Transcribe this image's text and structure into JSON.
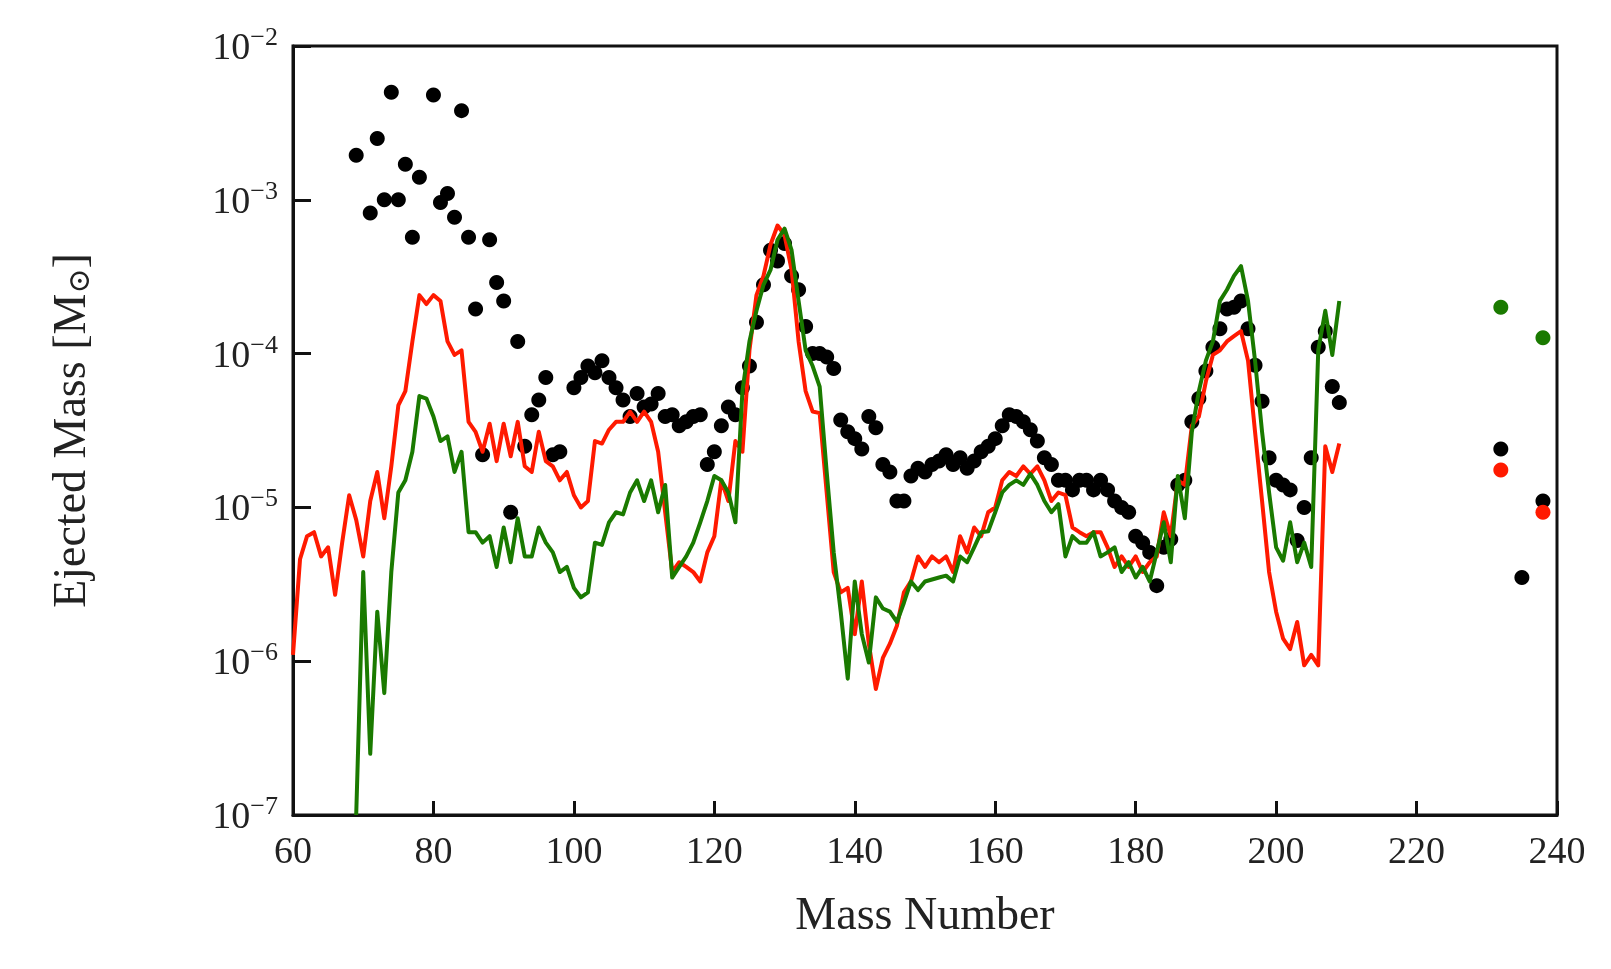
{
  "chart_data": {
    "type": "line",
    "xlabel": "Mass Number",
    "ylabel": "Ejected Mass [M$_{⊙}$]",
    "log": "y",
    "grid": false,
    "xlim": [
      60,
      240
    ],
    "xticks": [
      60,
      80,
      100,
      120,
      140,
      160,
      180,
      200,
      220,
      240
    ],
    "ylim": [
      1e-07,
      0.01
    ],
    "yticks": [
      {
        "value": 1e-07,
        "label": "10$^{−7}$"
      },
      {
        "value": 1e-06,
        "label": "10$^{−6}$"
      },
      {
        "value": 1e-05,
        "label": "10$^{−5}$"
      },
      {
        "value": 0.0001,
        "label": "10$^{−4}$"
      },
      {
        "value": 0.001,
        "label": "10$^{−3}$"
      },
      {
        "value": 0.01,
        "label": "10$^{−2}$"
      }
    ],
    "series": [
      {
        "marker": "none",
        "color": "#ff1a00",
        "x": [
          60,
          61,
          62,
          63,
          64,
          65,
          66,
          67,
          68,
          69,
          70,
          71,
          72,
          73,
          74,
          75,
          76,
          77,
          78,
          79,
          80,
          81,
          82,
          83,
          84,
          85,
          86,
          87,
          88,
          89,
          90,
          91,
          92,
          93,
          94,
          95,
          96,
          97,
          98,
          99,
          100,
          101,
          102,
          103,
          104,
          105,
          106,
          107,
          108,
          109,
          110,
          111,
          112,
          113,
          114,
          115,
          116,
          117,
          118,
          119,
          120,
          121,
          122,
          123,
          124,
          125,
          126,
          127,
          128,
          129,
          130,
          131,
          132,
          133,
          134,
          135,
          136,
          137,
          138,
          139,
          140,
          141,
          142,
          143,
          144,
          145,
          146,
          147,
          148,
          149,
          150,
          151,
          152,
          153,
          154,
          155,
          156,
          157,
          158,
          159,
          160,
          161,
          162,
          163,
          164,
          165,
          166,
          167,
          168,
          169,
          170,
          171,
          172,
          173,
          174,
          175,
          176,
          177,
          178,
          179,
          180,
          181,
          182,
          183,
          184,
          185,
          186,
          187,
          188,
          189,
          190,
          191,
          192,
          193,
          194,
          195,
          196,
          197,
          198,
          199,
          200,
          201,
          202,
          203,
          204,
          205,
          206,
          207,
          208,
          209
        ],
        "values": [
          1.1e-06,
          4.6e-06,
          6.5e-06,
          6.9e-06,
          4.8e-06,
          5.5e-06,
          2.7e-06,
          5.9e-06,
          1.2e-05,
          8.3e-06,
          4.8e-06,
          1.1e-05,
          1.7e-05,
          8.5e-06,
          1.85e-05,
          4.6e-05,
          5.7e-05,
          0.00012,
          0.00024,
          0.00021,
          0.00024,
          0.00022,
          0.00012,
          9.8e-05,
          0.000105,
          3.6e-05,
          3.1e-05,
          2.3e-05,
          3.5e-05,
          2e-05,
          3.5e-05,
          2.15e-05,
          3.6e-05,
          1.85e-05,
          1.7e-05,
          3.1e-05,
          2e-05,
          1.85e-05,
          1.5e-05,
          1.7e-05,
          1.2e-05,
          1e-05,
          1.1e-05,
          2.7e-05,
          2.6e-05,
          3.2e-05,
          3.6e-05,
          3.6e-05,
          4.2e-05,
          3.6e-05,
          4.2e-05,
          3.6e-05,
          2.3e-05,
          9.3e-06,
          3.8e-06,
          4.4e-06,
          4.1e-06,
          3.8e-06,
          3.3e-06,
          5.1e-06,
          6.5e-06,
          1.5e-05,
          1.1e-05,
          2.7e-05,
          2.3e-05,
          0.000105,
          0.00024,
          0.00032,
          0.00051,
          0.00068,
          0.00059,
          0.00035,
          0.00012,
          5.7e-05,
          4.2e-05,
          4.1e-05,
          1.25e-05,
          3.8e-06,
          2.8e-06,
          3e-06,
          1.5e-06,
          3.3e-06,
          1.3e-06,
          6.6e-07,
          1.05e-06,
          1.3e-06,
          1.7e-06,
          2.8e-06,
          3.3e-06,
          4.8e-06,
          4.1e-06,
          4.8e-06,
          4.4e-06,
          4.8e-06,
          3.8e-06,
          6.5e-06,
          5.1e-06,
          7.4e-06,
          6.5e-06,
          9.3e-06,
          1e-05,
          1.5e-05,
          1.7e-05,
          1.6e-05,
          1.85e-05,
          1.65e-05,
          1.85e-05,
          1.5e-05,
          1.1e-05,
          1.25e-05,
          1.2e-05,
          7.4e-06,
          6.9e-06,
          6.5e-06,
          6.9e-06,
          6.9e-06,
          5.5e-06,
          4.1e-06,
          4.8e-06,
          4.1e-06,
          4.8e-06,
          3.8e-06,
          4.4e-06,
          4.8e-06,
          9.3e-06,
          6.5e-06,
          1.5e-05,
          1.4e-05,
          3.4e-05,
          3.9e-05,
          6.6e-05,
          9.8e-05,
          0.000105,
          0.00012,
          0.00013,
          0.00014,
          9e-05,
          3.1e-05,
          1.1e-05,
          3.8e-06,
          2.1e-06,
          1.4e-06,
          1.2e-06,
          1.8e-06,
          9.4e-07,
          1.1e-06,
          9.4e-07,
          2.5e-05,
          1.7e-05,
          2.6e-05
        ]
      },
      {
        "marker": "none",
        "color": "#1a7a00",
        "x": [
          69,
          70,
          71,
          72,
          73,
          74,
          75,
          76,
          77,
          78,
          79,
          80,
          81,
          82,
          83,
          84,
          85,
          86,
          87,
          88,
          89,
          90,
          91,
          92,
          93,
          94,
          95,
          96,
          97,
          98,
          99,
          100,
          101,
          102,
          103,
          104,
          105,
          106,
          107,
          108,
          109,
          110,
          111,
          112,
          113,
          114,
          115,
          116,
          117,
          118,
          119,
          120,
          121,
          122,
          123,
          124,
          125,
          126,
          127,
          128,
          129,
          130,
          131,
          132,
          133,
          134,
          135,
          136,
          137,
          138,
          139,
          140,
          141,
          142,
          143,
          144,
          145,
          146,
          147,
          148,
          149,
          150,
          151,
          152,
          153,
          154,
          155,
          156,
          157,
          158,
          159,
          160,
          161,
          162,
          163,
          164,
          165,
          166,
          167,
          168,
          169,
          170,
          171,
          172,
          173,
          174,
          175,
          176,
          177,
          178,
          179,
          180,
          181,
          182,
          183,
          184,
          185,
          186,
          187,
          188,
          189,
          190,
          191,
          192,
          193,
          194,
          195,
          196,
          197,
          198,
          199,
          200,
          201,
          202,
          203,
          204,
          205,
          206,
          207,
          208,
          209
        ],
        "values": [
          1e-07,
          3.8e-06,
          2.5e-07,
          2.1e-06,
          6.2e-07,
          3.8e-06,
          1.25e-05,
          1.5e-05,
          2.3e-05,
          5.3e-05,
          5.1e-05,
          3.9e-05,
          2.7e-05,
          2.9e-05,
          1.7e-05,
          2.3e-05,
          6.9e-06,
          6.9e-06,
          5.9e-06,
          6.5e-06,
          4.1e-06,
          7.4e-06,
          4.4e-06,
          8.5e-06,
          4.8e-06,
          4.8e-06,
          7.4e-06,
          5.9e-06,
          5.1e-06,
          3.8e-06,
          4.1e-06,
          3e-06,
          2.6e-06,
          2.8e-06,
          5.9e-06,
          5.7e-06,
          8e-06,
          9.3e-06,
          9e-06,
          1.25e-05,
          1.5e-05,
          1.1e-05,
          1.5e-05,
          9.3e-06,
          1.4e-05,
          3.5e-06,
          4.1e-06,
          4.8e-06,
          5.9e-06,
          8e-06,
          1.1e-05,
          1.6e-05,
          1.5e-05,
          1.25e-05,
          8e-06,
          5.7e-05,
          0.00012,
          0.00019,
          0.00028,
          0.00035,
          0.00055,
          0.00065,
          0.00047,
          0.00022,
          0.000105,
          8.3e-05,
          6.1e-05,
          1.7e-05,
          5.1e-06,
          2.1e-06,
          7.7e-07,
          3.3e-06,
          1.5e-06,
          9.8e-07,
          2.6e-06,
          2.2e-06,
          2.1e-06,
          1.8e-06,
          2.4e-06,
          3.3e-06,
          2.9e-06,
          3.3e-06,
          3.4e-06,
          3.5e-06,
          3.6e-06,
          3.3e-06,
          4.8e-06,
          4.4e-06,
          5.5e-06,
          6.9e-06,
          7e-06,
          9.3e-06,
          1.25e-05,
          1.4e-05,
          1.5e-05,
          1.4e-05,
          1.65e-05,
          1.4e-05,
          1.1e-05,
          9.3e-06,
          1.05e-05,
          4.8e-06,
          6.5e-06,
          5.9e-06,
          5.9e-06,
          6.9e-06,
          4.8e-06,
          5.1e-06,
          5.5e-06,
          3.8e-06,
          4.4e-06,
          3.5e-06,
          4.1e-06,
          3.3e-06,
          5.1e-06,
          8e-06,
          4.4e-06,
          1.6e-05,
          8.5e-06,
          3.1e-05,
          5.7e-05,
          9e-05,
          0.00012,
          0.00022,
          0.00026,
          0.00032,
          0.00037,
          0.00022,
          9e-05,
          3.1e-05,
          1.25e-05,
          5.5e-06,
          4.5e-06,
          8e-06,
          4.4e-06,
          5.9e-06,
          4.1e-06,
          0.000105,
          0.00019,
          9.8e-05,
          0.00022
        ]
      },
      {
        "type": "scatter",
        "marker": "circle",
        "color": "#000000",
        "x": [
          69,
          71,
          72,
          73,
          74,
          75,
          76,
          77,
          78,
          80,
          81,
          82,
          83,
          84,
          85,
          86,
          87,
          88,
          89,
          90,
          91,
          92,
          93,
          94,
          95,
          96,
          97,
          98,
          100,
          101,
          102,
          103,
          104,
          105,
          106,
          107,
          108,
          109,
          110,
          111,
          112,
          113,
          114,
          115,
          116,
          117,
          118,
          119,
          120,
          121,
          122,
          123,
          124,
          125,
          126,
          127,
          128,
          129,
          130,
          131,
          132,
          133,
          134,
          135,
          136,
          137,
          138,
          139,
          140,
          141,
          142,
          143,
          144,
          145,
          146,
          147,
          148,
          149,
          150,
          151,
          152,
          153,
          154,
          155,
          156,
          157,
          158,
          159,
          160,
          161,
          162,
          163,
          164,
          165,
          166,
          167,
          168,
          169,
          170,
          171,
          172,
          173,
          174,
          175,
          176,
          177,
          178,
          179,
          180,
          181,
          182,
          183,
          184,
          185,
          186,
          187,
          188,
          189,
          190,
          191,
          192,
          193,
          194,
          195,
          196,
          197,
          198,
          199,
          200,
          201,
          202,
          203,
          204,
          205,
          206,
          207,
          208,
          209,
          232,
          235,
          238
        ],
        "values": [
          0.00195,
          0.00082,
          0.0025,
          0.001,
          0.005,
          0.001,
          0.0017,
          0.00057,
          0.0014,
          0.0048,
          0.00096,
          0.0011,
          0.00077,
          0.0038,
          0.00057,
          0.000195,
          2.2e-05,
          0.00055,
          0.00029,
          0.00022,
          9.3e-06,
          0.00012,
          2.5e-05,
          4e-05,
          5e-05,
          7e-05,
          2.2e-05,
          2.3e-05,
          6e-05,
          7e-05,
          8.3e-05,
          7.5e-05,
          9e-05,
          7e-05,
          6e-05,
          5e-05,
          3.9e-05,
          5.5e-05,
          4.5e-05,
          4.7e-05,
          5.5e-05,
          3.9e-05,
          4e-05,
          3.4e-05,
          3.6e-05,
          3.9e-05,
          4e-05,
          1.9e-05,
          2.3e-05,
          3.4e-05,
          4.5e-05,
          4e-05,
          6e-05,
          8.3e-05,
          0.00016,
          0.00028,
          0.00047,
          0.0004,
          0.00052,
          0.00032,
          0.00026,
          0.00015,
          0.0001,
          0.0001,
          9.5e-05,
          8e-05,
          3.7e-05,
          3.1e-05,
          2.8e-05,
          2.4e-05,
          3.9e-05,
          3.3e-05,
          1.9e-05,
          1.7e-05,
          1.1e-05,
          1.1e-05,
          1.6e-05,
          1.8e-05,
          1.7e-05,
          1.9e-05,
          2e-05,
          2.2e-05,
          1.9e-05,
          2.1e-05,
          1.8e-05,
          2e-05,
          2.3e-05,
          2.5e-05,
          2.8e-05,
          3.4e-05,
          4e-05,
          3.9e-05,
          3.6e-05,
          3.2e-05,
          2.7e-05,
          2.1e-05,
          1.9e-05,
          1.5e-05,
          1.5e-05,
          1.3e-05,
          1.5e-05,
          1.5e-05,
          1.3e-05,
          1.5e-05,
          1.3e-05,
          1.1e-05,
          1e-05,
          9.3e-06,
          6.5e-06,
          5.9e-06,
          5.1e-06,
          3.1e-06,
          5.5e-06,
          6.2e-06,
          1.4e-05,
          1.5e-05,
          3.6e-05,
          5.1e-05,
          7.7e-05,
          0.00011,
          0.000145,
          0.000195,
          0.0002,
          0.00022,
          0.000145,
          8.4e-05,
          4.9e-05,
          2.1e-05,
          1.5e-05,
          1.4e-05,
          1.3e-05,
          6.1e-06,
          1e-05,
          2.1e-05,
          0.00011,
          0.00014,
          6.1e-05,
          4.8e-05,
          2.4e-05,
          3.5e-06,
          1.1e-05
        ]
      },
      {
        "type": "scatter",
        "marker": "circle",
        "color": "#1a7a00",
        "x": [
          232,
          238
        ],
        "values": [
          0.0002,
          0.000127
        ]
      },
      {
        "type": "scatter",
        "marker": "circle",
        "color": "#ff1a00",
        "x": [
          232,
          238
        ],
        "values": [
          1.75e-05,
          9.3e-06
        ]
      }
    ]
  }
}
